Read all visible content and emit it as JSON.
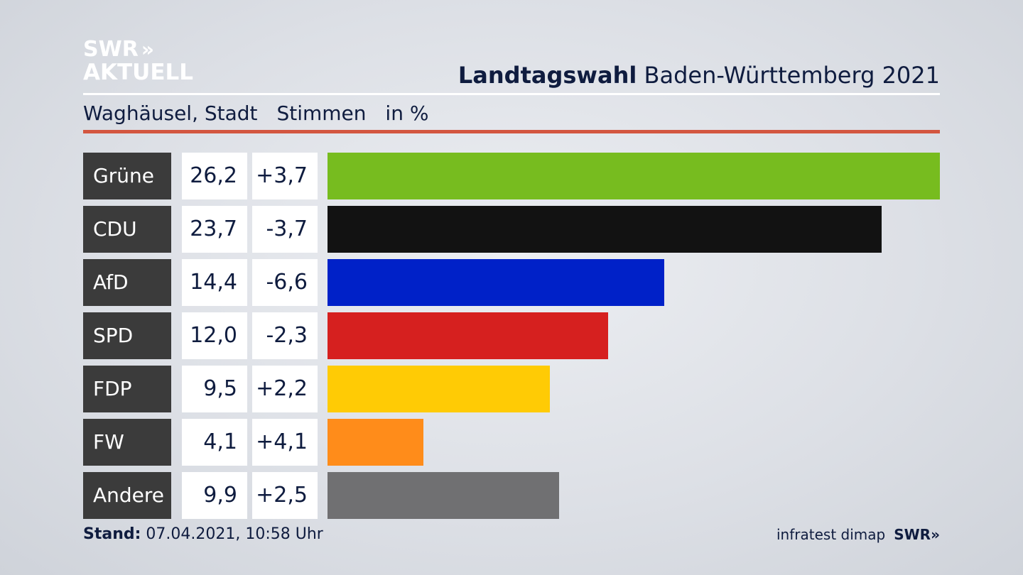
{
  "logo": {
    "line1": "SWR",
    "chevrons": "»",
    "line2": "AKTUELL"
  },
  "header": {
    "title_bold": "Landtagswahl",
    "title_rest": "Baden-Württemberg 2021"
  },
  "subtitle": {
    "place": "Waghäusel, Stadt",
    "measure": "Stimmen",
    "unit": "in %"
  },
  "colors": {
    "accent_rule": "#d35640",
    "label_bg": "#3b3b3b"
  },
  "chart_data": {
    "type": "bar",
    "orientation": "horizontal",
    "categories": [
      "Grüne",
      "CDU",
      "AfD",
      "SPD",
      "FDP",
      "FW",
      "Andere"
    ],
    "values": [
      26.2,
      23.7,
      14.4,
      12.0,
      9.5,
      4.1,
      9.9
    ],
    "value_labels": [
      "26,2",
      "23,7",
      "14,4",
      "12,0",
      "9,5",
      "4,1",
      "9,9"
    ],
    "change_labels": [
      "+3,7",
      "-3,7",
      "-6,6",
      "-2,3",
      "+2,2",
      "+4,1",
      "+2,5"
    ],
    "changes": [
      3.7,
      -3.7,
      -6.6,
      -2.3,
      2.2,
      4.1,
      2.5
    ],
    "colors": [
      "#77bc1f",
      "#121212",
      "#0021c8",
      "#d6201f",
      "#ffcb05",
      "#ff8c1a",
      "#707072"
    ],
    "xlim": [
      0,
      26.2
    ]
  },
  "footer": {
    "stand_label": "Stand:",
    "stand_value": "07.04.2021, 10:58 Uhr",
    "source": "infratest dimap",
    "brand": "SWR»"
  }
}
